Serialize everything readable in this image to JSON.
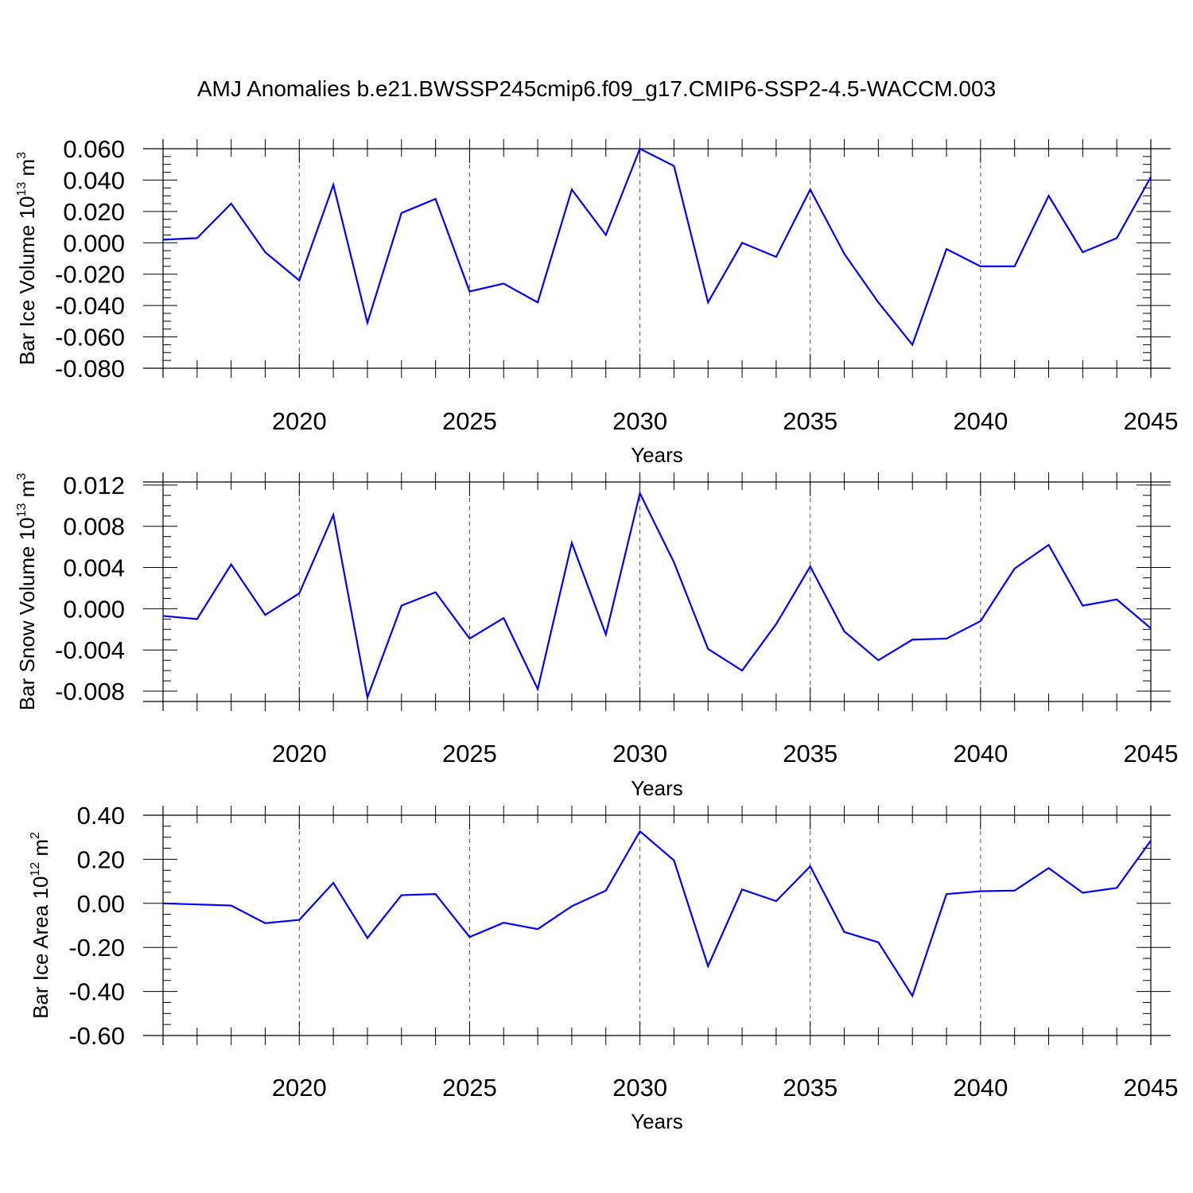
{
  "title": "AMJ Anomalies b.e21.BWSSP245cmip6.f09_g17.CMIP6-SSP2-4.5-WACCM.003",
  "colors": {
    "line": "#0000ff",
    "axis": "#000000",
    "grid": "#000000"
  },
  "chart_data": [
    {
      "type": "line",
      "ylabel": "Bar Ice Volume 10",
      "ylabel_exp": "13",
      "ylabel_unit": " m",
      "ylabel_unit_exp": "3",
      "xlabel": "Years",
      "xlim": [
        2016,
        2045
      ],
      "ylim": [
        -0.08,
        0.06
      ],
      "xticks": [
        "2020",
        "2025",
        "2030",
        "2035",
        "2040",
        "2045"
      ],
      "yticks": [
        "0.060",
        "0.040",
        "0.020",
        "0.000",
        "-0.020",
        "-0.040",
        "-0.060",
        "-0.080"
      ],
      "grid": "dashed vertical lines at labeled years",
      "x": [
        2016,
        2017,
        2018,
        2019,
        2020,
        2021,
        2022,
        2023,
        2024,
        2025,
        2026,
        2027,
        2028,
        2029,
        2030,
        2031,
        2032,
        2033,
        2034,
        2035,
        2036,
        2037,
        2038,
        2039,
        2040,
        2041,
        2042,
        2043,
        2044,
        2045
      ],
      "values": [
        0.002,
        0.003,
        0.025,
        -0.006,
        -0.024,
        0.037,
        -0.051,
        0.019,
        0.028,
        -0.031,
        -0.026,
        -0.038,
        0.034,
        0.005,
        0.06,
        0.049,
        -0.038,
        0.0,
        -0.009,
        0.034,
        -0.007,
        -0.038,
        -0.065,
        -0.004,
        -0.015,
        -0.015,
        0.03,
        -0.006,
        0.003,
        0.042
      ]
    },
    {
      "type": "line",
      "ylabel": "Bar Snow Volume 10",
      "ylabel_exp": "13",
      "ylabel_unit": " m",
      "ylabel_unit_exp": "3",
      "xlabel": "Years",
      "xlim": [
        2016,
        2045
      ],
      "ylim": [
        -0.009,
        0.0123
      ],
      "xticks": [
        "2020",
        "2025",
        "2030",
        "2035",
        "2040",
        "2045"
      ],
      "yticks": [
        "0.012",
        "0.008",
        "0.004",
        "0.000",
        "-0.004",
        "-0.008"
      ],
      "grid": "dashed vertical lines at labeled years",
      "x": [
        2016,
        2017,
        2018,
        2019,
        2020,
        2021,
        2022,
        2023,
        2024,
        2025,
        2026,
        2027,
        2028,
        2029,
        2030,
        2031,
        2032,
        2033,
        2034,
        2035,
        2036,
        2037,
        2038,
        2039,
        2040,
        2041,
        2042,
        2043,
        2044,
        2045
      ],
      "values": [
        -0.0007,
        -0.001,
        0.0043,
        -0.0006,
        0.0015,
        0.0091,
        -0.0086,
        0.0003,
        0.0016,
        -0.0029,
        -0.0009,
        -0.0078,
        0.0064,
        -0.0025,
        0.0112,
        0.0045,
        -0.0039,
        -0.006,
        -0.0015,
        0.0041,
        -0.0022,
        -0.005,
        -0.003,
        -0.0029,
        -0.0012,
        0.0039,
        0.0062,
        0.0003,
        0.0009,
        -0.0019
      ]
    },
    {
      "type": "line",
      "ylabel": "Bar Ice Area 10",
      "ylabel_exp": "12",
      "ylabel_unit": " m",
      "ylabel_unit_exp": "2",
      "xlabel": "Years",
      "xlim": [
        2016,
        2045
      ],
      "ylim": [
        -0.6,
        0.4
      ],
      "xticks": [
        "2020",
        "2025",
        "2030",
        "2035",
        "2040",
        "2045"
      ],
      "yticks": [
        "0.40",
        "0.20",
        "0.00",
        "-0.20",
        "-0.40",
        "-0.60"
      ],
      "grid": "dashed vertical lines at labeled years",
      "x": [
        2016,
        2017,
        2018,
        2019,
        2020,
        2021,
        2022,
        2023,
        2024,
        2025,
        2026,
        2027,
        2028,
        2029,
        2030,
        2031,
        2032,
        2033,
        2034,
        2035,
        2036,
        2037,
        2038,
        2039,
        2040,
        2041,
        2042,
        2043,
        2044,
        2045
      ],
      "values": [
        0.0,
        -0.005,
        -0.01,
        -0.09,
        -0.075,
        0.093,
        -0.157,
        0.037,
        0.042,
        -0.153,
        -0.088,
        -0.117,
        -0.013,
        0.058,
        0.327,
        0.195,
        -0.285,
        0.063,
        0.01,
        0.168,
        -0.13,
        -0.177,
        -0.42,
        0.042,
        0.055,
        0.058,
        0.16,
        0.048,
        0.07,
        0.285
      ]
    }
  ]
}
